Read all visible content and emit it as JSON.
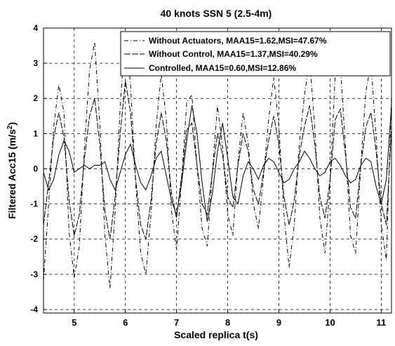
{
  "chart_data": {
    "type": "line",
    "title": "40 knots SSN 5 (2.5-4m)",
    "xlabel": "Scaled replica t(s)",
    "ylabel_main": "Filtered Acc15 (m/s",
    "ylabel_sup": "2",
    "ylabel_close": ")",
    "xlim": [
      4.4,
      11.2
    ],
    "ylim": [
      -4.1,
      4.0
    ],
    "xticks": [
      "5",
      "6",
      "7",
      "8",
      "9",
      "10",
      "11"
    ],
    "yticks": [
      "-4",
      "-3",
      "-2",
      "-1",
      "0",
      "1",
      "2",
      "3",
      "4"
    ],
    "grid": true,
    "grid_style": "dashed",
    "legend_position": "top-right",
    "series": [
      {
        "name": "Without Actuators, MAA15=1.62,MSI=47.67%",
        "style": "dashdot",
        "x": [
          4.4,
          4.5,
          4.6,
          4.7,
          4.8,
          4.9,
          5.0,
          5.1,
          5.2,
          5.3,
          5.4,
          5.5,
          5.6,
          5.7,
          5.8,
          5.9,
          6.0,
          6.1,
          6.2,
          6.3,
          6.4,
          6.5,
          6.6,
          6.7,
          6.8,
          6.9,
          7.0,
          7.1,
          7.2,
          7.3,
          7.4,
          7.5,
          7.6,
          7.7,
          7.8,
          7.9,
          8.0,
          8.1,
          8.2,
          8.3,
          8.4,
          8.5,
          8.6,
          8.7,
          8.8,
          8.9,
          9.0,
          9.1,
          9.2,
          9.3,
          9.4,
          9.5,
          9.6,
          9.7,
          9.8,
          9.9,
          10.0,
          10.1,
          10.2,
          10.3,
          10.4,
          10.5,
          10.6,
          10.7,
          10.8,
          10.9,
          11.0,
          11.1,
          11.2
        ],
        "y": [
          -3.2,
          -1.0,
          1.2,
          2.4,
          1.6,
          -1.8,
          -3.1,
          -2.2,
          0.6,
          2.8,
          3.6,
          1.3,
          -1.9,
          -3.4,
          -1.2,
          1.8,
          3.9,
          2.4,
          -0.4,
          -2.4,
          -3.0,
          -1.3,
          1.2,
          2.7,
          1.4,
          -1.2,
          -2.3,
          -0.3,
          1.9,
          2.1,
          0.1,
          -1.7,
          -2.2,
          -0.1,
          1.8,
          0.6,
          -1.3,
          -1.9,
          0.2,
          1.6,
          0.7,
          -1.0,
          -1.7,
          -0.2,
          1.4,
          2.6,
          1.2,
          -1.3,
          -2.8,
          -1.6,
          0.7,
          2.1,
          3.1,
          1.2,
          -1.4,
          -2.4,
          -0.4,
          2.7,
          3.0,
          0.6,
          -1.9,
          -2.4,
          0.1,
          2.2,
          3.0,
          0.9,
          -1.6,
          -2.6,
          2.1
        ]
      },
      {
        "name": "Without Control, MAA15=1.37,MSI=40.29%",
        "style": "longdash",
        "x": [
          4.4,
          4.5,
          4.6,
          4.7,
          4.8,
          4.9,
          5.0,
          5.1,
          5.2,
          5.3,
          5.4,
          5.5,
          5.6,
          5.7,
          5.8,
          5.9,
          6.0,
          6.1,
          6.2,
          6.3,
          6.4,
          6.5,
          6.6,
          6.7,
          6.8,
          6.9,
          7.0,
          7.1,
          7.2,
          7.3,
          7.4,
          7.5,
          7.6,
          7.7,
          7.8,
          7.9,
          8.0,
          8.1,
          8.2,
          8.3,
          8.4,
          8.5,
          8.6,
          8.7,
          8.8,
          8.9,
          9.0,
          9.1,
          9.2,
          9.3,
          9.4,
          9.5,
          9.6,
          9.7,
          9.8,
          9.9,
          10.0,
          10.1,
          10.2,
          10.3,
          10.4,
          10.5,
          10.6,
          10.7,
          10.8,
          10.9,
          11.0,
          11.1,
          11.2
        ],
        "y": [
          -1.6,
          -0.4,
          0.9,
          1.6,
          0.9,
          -0.9,
          -1.9,
          -1.3,
          0.3,
          1.5,
          2.0,
          0.7,
          -1.2,
          -2.0,
          -0.8,
          1.0,
          2.5,
          1.6,
          -0.3,
          -1.6,
          -2.0,
          -0.9,
          0.7,
          1.6,
          0.8,
          -0.7,
          -1.4,
          -0.2,
          1.1,
          1.3,
          0.1,
          -1.0,
          -1.3,
          -0.1,
          1.0,
          0.4,
          -0.8,
          -1.1,
          0.1,
          1.0,
          0.5,
          -0.6,
          -1.0,
          -0.1,
          0.8,
          1.5,
          0.7,
          -0.8,
          -1.6,
          -0.9,
          0.4,
          1.2,
          1.8,
          0.7,
          -0.8,
          -1.4,
          -0.3,
          1.4,
          1.7,
          0.4,
          -1.1,
          -1.4,
          0.1,
          1.2,
          1.6,
          0.5,
          -1.0,
          -1.6,
          1.2
        ]
      },
      {
        "name": "Controlled, MAA15=0.60,MSI=12.86%",
        "style": "solid",
        "x": [
          4.4,
          4.5,
          4.6,
          4.7,
          4.8,
          4.9,
          5.0,
          5.1,
          5.2,
          5.3,
          5.4,
          5.5,
          5.6,
          5.7,
          5.8,
          5.9,
          6.0,
          6.1,
          6.2,
          6.3,
          6.4,
          6.5,
          6.6,
          6.7,
          6.8,
          6.9,
          7.0,
          7.1,
          7.2,
          7.3,
          7.4,
          7.5,
          7.6,
          7.7,
          7.8,
          7.9,
          8.0,
          8.1,
          8.2,
          8.3,
          8.4,
          8.5,
          8.6,
          8.7,
          8.8,
          8.9,
          9.0,
          9.1,
          9.2,
          9.3,
          9.4,
          9.5,
          9.6,
          9.7,
          9.8,
          9.9,
          10.0,
          10.1,
          10.2,
          10.3,
          10.4,
          10.5,
          10.6,
          10.7,
          10.8,
          10.9,
          11.0,
          11.1,
          11.2
        ],
        "y": [
          -0.1,
          -0.6,
          -0.3,
          0.4,
          0.8,
          0.5,
          -0.1,
          0.0,
          0.1,
          0.0,
          0.1,
          0.1,
          0.2,
          -0.3,
          -0.6,
          -0.1,
          0.4,
          0.7,
          0.1,
          -0.4,
          -0.6,
          -0.2,
          0.3,
          0.5,
          -0.2,
          -0.9,
          -1.3,
          -0.4,
          0.8,
          1.8,
          1.0,
          -0.4,
          -1.5,
          -0.7,
          0.5,
          1.3,
          0.3,
          -0.8,
          -1.0,
          -0.2,
          0.2,
          0.0,
          -0.3,
          0.1,
          0.3,
          0.2,
          -0.1,
          -0.4,
          -0.3,
          0.0,
          0.2,
          0.5,
          0.3,
          0.0,
          -0.2,
          -0.1,
          0.2,
          0.3,
          0.1,
          -0.2,
          -0.4,
          -0.3,
          0.1,
          0.3,
          0.2,
          -0.5,
          -1.0,
          -0.3,
          1.8
        ]
      }
    ]
  }
}
